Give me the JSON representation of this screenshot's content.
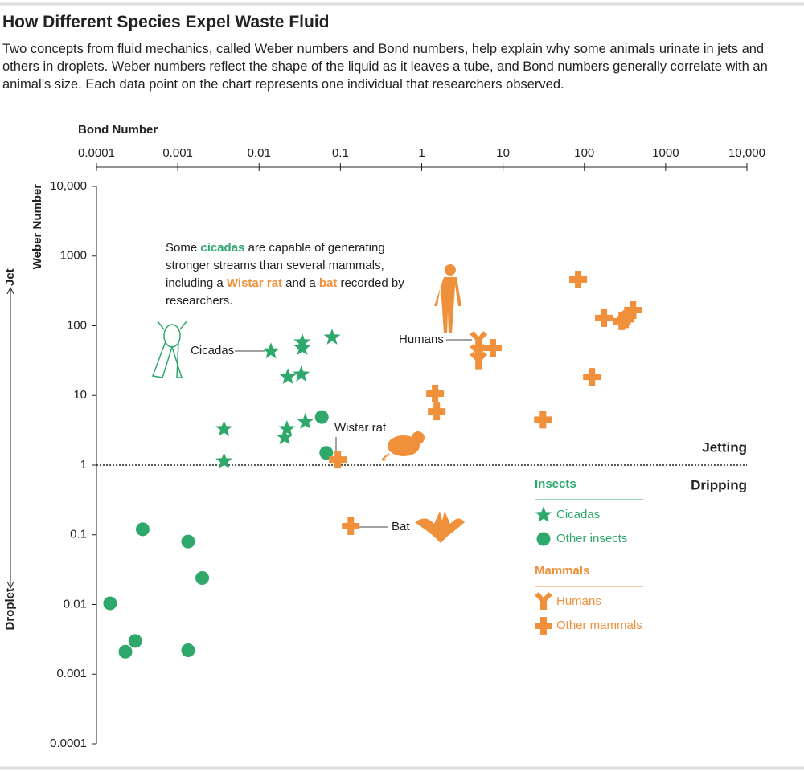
{
  "chart_data": {
    "type": "scatter",
    "title": "How Different Species Expel Waste Fluid",
    "subtitle": "Two concepts from fluid mechanics, called Weber numbers and Bond numbers, help explain why some animals urinate in jets and others in droplets. Weber numbers reflect the shape of the liquid as it leaves a tube, and Bond numbers generally correlate with an animal’s size. Each data point on the chart represents one individual that researchers observed.",
    "x_label": "Bond Number",
    "y_label": "Weber Number",
    "y_direction_labels": {
      "high": "Jet",
      "low": "Droplet"
    },
    "x_log": true,
    "y_log": true,
    "xlim": [
      0.0001,
      10000
    ],
    "ylim": [
      0.0001,
      10000
    ],
    "xticks": [
      0.0001,
      0.001,
      0.01,
      0.1,
      1,
      10,
      100,
      1000,
      {
        "value": 10000,
        "label": "10,000"
      }
    ],
    "yticks": [
      0.0001,
      0.001,
      0.01,
      0.1,
      1,
      10,
      100,
      1000,
      {
        "value": 10000,
        "label": "10,000"
      }
    ],
    "threshold": {
      "value": 1,
      "above": "Jetting",
      "below": "Dripping"
    },
    "series": [
      {
        "name": "Cicadas",
        "group": "Insects",
        "marker": "star",
        "color": "#2fa86c",
        "x": [
          0.014,
          0.034,
          0.034,
          0.079,
          0.0226,
          0.033,
          0.0037,
          0.0037,
          0.022,
          0.0206,
          0.037
        ],
        "values": [
          43,
          58,
          48,
          68,
          18.5,
          20,
          3.3,
          1.14,
          3.3,
          2.5,
          4.2
        ]
      },
      {
        "name": "Other insects",
        "group": "Insects",
        "marker": "circle",
        "color": "#2fa86c",
        "x": [
          0.059,
          0.067,
          0.00037,
          0.00134,
          0.002,
          0.000147,
          0.0003,
          0.000227,
          0.00134
        ],
        "values": [
          4.9,
          1.5,
          0.12,
          0.08,
          0.024,
          0.0104,
          0.003,
          0.0021,
          0.0022
        ]
      },
      {
        "name": "Humans",
        "group": "Mammals",
        "marker": "humans",
        "color": "#f0903a",
        "x": [
          5,
          5,
          5
        ],
        "values": [
          61,
          40,
          31
        ]
      },
      {
        "name": "Other mammals",
        "group": "Mammals",
        "marker": "cross",
        "color": "#f0903a",
        "x": [
          0.093,
          0.134,
          1.46,
          1.53,
          7.5,
          31,
          124,
          84,
          174,
          288,
          322,
          340,
          396
        ],
        "values": [
          1.2,
          0.133,
          10.6,
          5.9,
          48,
          4.5,
          18.5,
          460,
          129,
          116,
          124,
          140,
          168
        ]
      }
    ],
    "annotation": [
      {
        "text": "Some "
      },
      {
        "text": "cicadas",
        "color": "#2fa86c"
      },
      {
        "text": " are capable of generating stronger streams than several mammals, including a "
      },
      {
        "text": "Wistar rat",
        "color": "#f0903a"
      },
      {
        "text": " and a "
      },
      {
        "text": "bat",
        "color": "#f0903a"
      },
      {
        "text": " recorded by researchers."
      }
    ],
    "callouts": [
      "Cicadas",
      "Humans",
      "Wistar rat",
      "Bat"
    ]
  }
}
